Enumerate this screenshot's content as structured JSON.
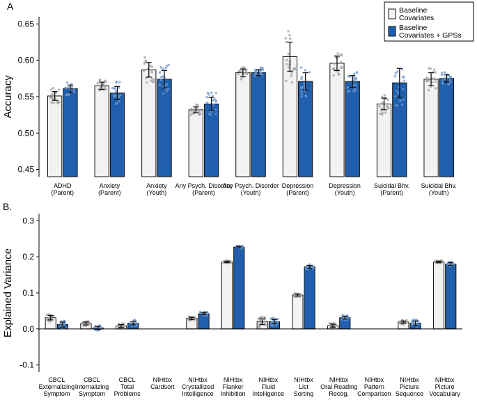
{
  "chart_data": [
    {
      "panel_label": "A",
      "type": "bar",
      "ylabel": "Accuracy",
      "xlabel": "",
      "ylim": [
        0.44,
        0.66
      ],
      "yticks": [
        "0.45",
        "0.50",
        "0.55",
        "0.60",
        "0.65"
      ],
      "categories": [
        [
          "ADHD",
          "(Parent)"
        ],
        [
          "Anxiety",
          "(Parent)"
        ],
        [
          "Anxiety",
          "(Youth)"
        ],
        [
          "Any Psych. Disorder",
          "(Parent)"
        ],
        [
          "Any Psych. Disorder",
          "(Youth)"
        ],
        [
          "Depression",
          "(Parent)"
        ],
        [
          "Depression",
          "(Youth)"
        ],
        [
          "Suicidal Bhv.",
          "(Parent)"
        ],
        [
          "Suicidal Bhv.",
          "(Youth)"
        ]
      ],
      "series": [
        {
          "name": "Baseline Covariates",
          "color": "#f2f2f2",
          "values": [
            0.551,
            0.565,
            0.587,
            0.532,
            0.583,
            0.605,
            0.596,
            0.54,
            0.574
          ],
          "err": [
            0.006,
            0.005,
            0.01,
            0.004,
            0.005,
            0.02,
            0.01,
            0.008,
            0.009
          ]
        },
        {
          "name": "Baseline Covariates + GPSs",
          "color": "#1f5fad",
          "values": [
            0.561,
            0.555,
            0.574,
            0.54,
            0.583,
            0.571,
            0.571,
            0.569,
            0.575
          ],
          "err": [
            0.005,
            0.009,
            0.012,
            0.009,
            0.004,
            0.012,
            0.008,
            0.02,
            0.005
          ]
        }
      ],
      "legend": {
        "placement": "top-right",
        "entries": [
          [
            "Baseline",
            "Covariates"
          ],
          [
            "Baseline",
            "Covariates + GPSs"
          ]
        ]
      }
    },
    {
      "panel_label": "B.",
      "type": "bar",
      "ylabel": "Explained Variance",
      "xlabel": "",
      "ylim": [
        -0.12,
        0.32
      ],
      "yticks": [
        "-0.1",
        "0.0",
        "0.1",
        "0.2",
        "0.3"
      ],
      "categories": [
        [
          "CBCL",
          "Externalizing",
          "Symptom"
        ],
        [
          "CBCL",
          "Internalizing",
          "Symptom"
        ],
        [
          "CBCL",
          "Total",
          "Problems"
        ],
        [
          "NIHtbx",
          "Cardsort"
        ],
        [
          "NIHtbx",
          "Crystallized",
          "Intelligence"
        ],
        [
          "NIHtbx",
          "Flanker",
          "Inhibition"
        ],
        [
          "NIHtbx",
          "Fluid",
          "Intelligence"
        ],
        [
          "NIHtbx",
          "List",
          "Sorting"
        ],
        [
          "NIHtbx",
          "Oral Reading",
          "Recog."
        ],
        [
          "NIHtbx",
          "Pattern",
          "Comparison"
        ],
        [
          "NIHtbx",
          "Picture",
          "Sequence"
        ],
        [
          "NIHtbx",
          "Picture",
          "Vocabulary"
        ]
      ],
      "series": [
        {
          "name": "Baseline Covariates",
          "color": "#f2f2f2",
          "values": [
            0.031,
            0.015,
            0.008,
            0.0,
            0.029,
            0.186,
            0.02,
            0.094,
            0.009,
            0.0,
            0.019,
            0.186
          ],
          "err": [
            0.006,
            0.004,
            0.004,
            0.0,
            0.003,
            0.002,
            0.008,
            0.003,
            0.004,
            0.0,
            0.003,
            0.002
          ]
        },
        {
          "name": "Baseline Covariates + GPSs",
          "color": "#1f5fad",
          "values": [
            0.012,
            0.003,
            0.016,
            0.0,
            0.042,
            0.227,
            0.02,
            0.172,
            0.031,
            0.0,
            0.016,
            0.18
          ],
          "err": [
            0.007,
            0.004,
            0.005,
            0.0,
            0.003,
            0.002,
            0.006,
            0.004,
            0.004,
            0.0,
            0.006,
            0.004
          ]
        }
      ]
    }
  ]
}
